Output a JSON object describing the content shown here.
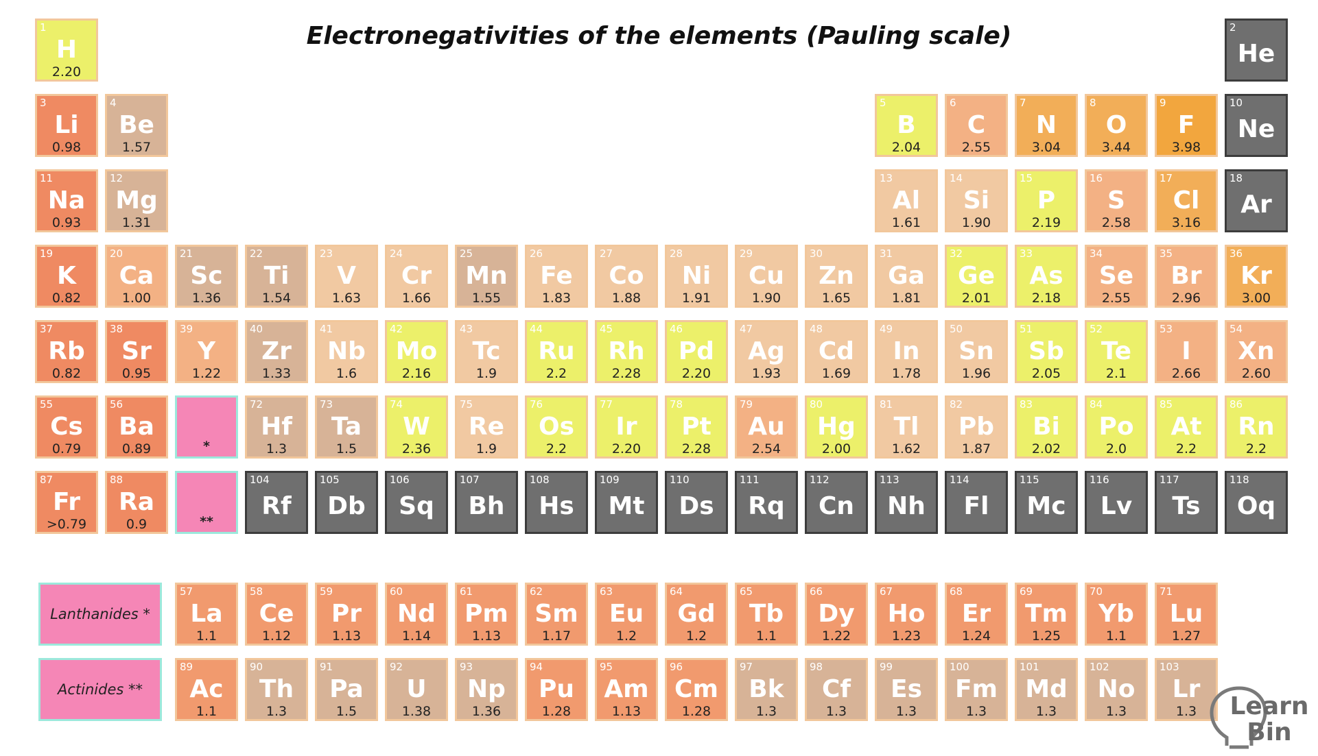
{
  "title": "Electronegativities of the elements (Pauling scale)",
  "colors": {
    "yellow": "#ecf06a",
    "light_tan": "#f1c9a2",
    "tan": "#e6bb95",
    "dark_tan": "#d7b397",
    "light_orange": "#f3b184",
    "orange": "#f19a6e",
    "salmon": "#ef8a62",
    "gold": "#f2ae58",
    "amber": "#f2a63e",
    "gray": "#6f6f6f",
    "pink": "#f586b6",
    "teal_border": "#9ce9dc"
  },
  "elements": [
    {
      "n": "1",
      "sym": "H",
      "en": "2.20",
      "row": 1,
      "col": 1,
      "color": "yellow"
    },
    {
      "n": "2",
      "sym": "He",
      "en": "",
      "row": 1,
      "col": 18,
      "color": "gray"
    },
    {
      "n": "3",
      "sym": "Li",
      "en": "0.98",
      "row": 2,
      "col": 1,
      "color": "salmon"
    },
    {
      "n": "4",
      "sym": "Be",
      "en": "1.57",
      "row": 2,
      "col": 2,
      "color": "dark_tan"
    },
    {
      "n": "5",
      "sym": "B",
      "en": "2.04",
      "row": 2,
      "col": 13,
      "color": "yellow"
    },
    {
      "n": "6",
      "sym": "C",
      "en": "2.55",
      "row": 2,
      "col": 14,
      "color": "light_orange"
    },
    {
      "n": "7",
      "sym": "N",
      "en": "3.04",
      "row": 2,
      "col": 15,
      "color": "gold"
    },
    {
      "n": "8",
      "sym": "O",
      "en": "3.44",
      "row": 2,
      "col": 16,
      "color": "gold"
    },
    {
      "n": "9",
      "sym": "F",
      "en": "3.98",
      "row": 2,
      "col": 17,
      "color": "amber"
    },
    {
      "n": "10",
      "sym": "Ne",
      "en": "",
      "row": 2,
      "col": 18,
      "color": "gray"
    },
    {
      "n": "11",
      "sym": "Na",
      "en": "0.93",
      "row": 3,
      "col": 1,
      "color": "salmon"
    },
    {
      "n": "12",
      "sym": "Mg",
      "en": "1.31",
      "row": 3,
      "col": 2,
      "color": "dark_tan"
    },
    {
      "n": "13",
      "sym": "Al",
      "en": "1.61",
      "row": 3,
      "col": 13,
      "color": "light_tan"
    },
    {
      "n": "14",
      "sym": "Si",
      "en": "1.90",
      "row": 3,
      "col": 14,
      "color": "light_tan"
    },
    {
      "n": "15",
      "sym": "P",
      "en": "2.19",
      "row": 3,
      "col": 15,
      "color": "yellow"
    },
    {
      "n": "16",
      "sym": "S",
      "en": "2.58",
      "row": 3,
      "col": 16,
      "color": "light_orange"
    },
    {
      "n": "17",
      "sym": "Cl",
      "en": "3.16",
      "row": 3,
      "col": 17,
      "color": "gold"
    },
    {
      "n": "18",
      "sym": "Ar",
      "en": "",
      "row": 3,
      "col": 18,
      "color": "gray"
    },
    {
      "n": "19",
      "sym": "K",
      "en": "0.82",
      "row": 4,
      "col": 1,
      "color": "salmon"
    },
    {
      "n": "20",
      "sym": "Ca",
      "en": "1.00",
      "row": 4,
      "col": 2,
      "color": "light_orange"
    },
    {
      "n": "21",
      "sym": "Sc",
      "en": "1.36",
      "row": 4,
      "col": 3,
      "color": "dark_tan"
    },
    {
      "n": "22",
      "sym": "Ti",
      "en": "1.54",
      "row": 4,
      "col": 4,
      "color": "dark_tan"
    },
    {
      "n": "23",
      "sym": "V",
      "en": "1.63",
      "row": 4,
      "col": 5,
      "color": "light_tan"
    },
    {
      "n": "24",
      "sym": "Cr",
      "en": "1.66",
      "row": 4,
      "col": 6,
      "color": "light_tan"
    },
    {
      "n": "25",
      "sym": "Mn",
      "en": "1.55",
      "row": 4,
      "col": 7,
      "color": "dark_tan"
    },
    {
      "n": "26",
      "sym": "Fe",
      "en": "1.83",
      "row": 4,
      "col": 8,
      "color": "light_tan"
    },
    {
      "n": "27",
      "sym": "Co",
      "en": "1.88",
      "row": 4,
      "col": 9,
      "color": "light_tan"
    },
    {
      "n": "28",
      "sym": "Ni",
      "en": "1.91",
      "row": 4,
      "col": 10,
      "color": "light_tan"
    },
    {
      "n": "29",
      "sym": "Cu",
      "en": "1.90",
      "row": 4,
      "col": 11,
      "color": "light_tan"
    },
    {
      "n": "30",
      "sym": "Zn",
      "en": "1.65",
      "row": 4,
      "col": 12,
      "color": "light_tan"
    },
    {
      "n": "31",
      "sym": "Ga",
      "en": "1.81",
      "row": 4,
      "col": 13,
      "color": "light_tan"
    },
    {
      "n": "32",
      "sym": "Ge",
      "en": "2.01",
      "row": 4,
      "col": 14,
      "color": "yellow"
    },
    {
      "n": "33",
      "sym": "As",
      "en": "2.18",
      "row": 4,
      "col": 15,
      "color": "yellow"
    },
    {
      "n": "34",
      "sym": "Se",
      "en": "2.55",
      "row": 4,
      "col": 16,
      "color": "light_orange"
    },
    {
      "n": "35",
      "sym": "Br",
      "en": "2.96",
      "row": 4,
      "col": 17,
      "color": "light_orange"
    },
    {
      "n": "36",
      "sym": "Kr",
      "en": "3.00",
      "row": 4,
      "col": 18,
      "color": "gold"
    },
    {
      "n": "37",
      "sym": "Rb",
      "en": "0.82",
      "row": 5,
      "col": 1,
      "color": "salmon"
    },
    {
      "n": "38",
      "sym": "Sr",
      "en": "0.95",
      "row": 5,
      "col": 2,
      "color": "salmon"
    },
    {
      "n": "39",
      "sym": "Y",
      "en": "1.22",
      "row": 5,
      "col": 3,
      "color": "light_orange"
    },
    {
      "n": "40",
      "sym": "Zr",
      "en": "1.33",
      "row": 5,
      "col": 4,
      "color": "dark_tan"
    },
    {
      "n": "41",
      "sym": "Nb",
      "en": "1.6",
      "row": 5,
      "col": 5,
      "color": "light_tan"
    },
    {
      "n": "42",
      "sym": "Mo",
      "en": "2.16",
      "row": 5,
      "col": 6,
      "color": "yellow"
    },
    {
      "n": "43",
      "sym": "Tc",
      "en": "1.9",
      "row": 5,
      "col": 7,
      "color": "light_tan"
    },
    {
      "n": "44",
      "sym": "Ru",
      "en": "2.2",
      "row": 5,
      "col": 8,
      "color": "yellow"
    },
    {
      "n": "45",
      "sym": "Rh",
      "en": "2.28",
      "row": 5,
      "col": 9,
      "color": "yellow"
    },
    {
      "n": "46",
      "sym": "Pd",
      "en": "2.20",
      "row": 5,
      "col": 10,
      "color": "yellow"
    },
    {
      "n": "47",
      "sym": "Ag",
      "en": "1.93",
      "row": 5,
      "col": 11,
      "color": "light_tan"
    },
    {
      "n": "48",
      "sym": "Cd",
      "en": "1.69",
      "row": 5,
      "col": 12,
      "color": "light_tan"
    },
    {
      "n": "49",
      "sym": "In",
      "en": "1.78",
      "row": 5,
      "col": 13,
      "color": "light_tan"
    },
    {
      "n": "50",
      "sym": "Sn",
      "en": "1.96",
      "row": 5,
      "col": 14,
      "color": "light_tan"
    },
    {
      "n": "51",
      "sym": "Sb",
      "en": "2.05",
      "row": 5,
      "col": 15,
      "color": "yellow"
    },
    {
      "n": "52",
      "sym": "Te",
      "en": "2.1",
      "row": 5,
      "col": 16,
      "color": "yellow"
    },
    {
      "n": "53",
      "sym": "I",
      "en": "2.66",
      "row": 5,
      "col": 17,
      "color": "light_orange"
    },
    {
      "n": "54",
      "sym": "Xn",
      "en": "2.60",
      "row": 5,
      "col": 18,
      "color": "light_orange"
    },
    {
      "n": "55",
      "sym": "Cs",
      "en": "0.79",
      "row": 6,
      "col": 1,
      "color": "salmon"
    },
    {
      "n": "56",
      "sym": "Ba",
      "en": "0.89",
      "row": 6,
      "col": 2,
      "color": "salmon"
    },
    {
      "n": "72",
      "sym": "Hf",
      "en": "1.3",
      "row": 6,
      "col": 4,
      "color": "dark_tan"
    },
    {
      "n": "73",
      "sym": "Ta",
      "en": "1.5",
      "row": 6,
      "col": 5,
      "color": "dark_tan"
    },
    {
      "n": "74",
      "sym": "W",
      "en": "2.36",
      "row": 6,
      "col": 6,
      "color": "yellow"
    },
    {
      "n": "75",
      "sym": "Re",
      "en": "1.9",
      "row": 6,
      "col": 7,
      "color": "light_tan"
    },
    {
      "n": "76",
      "sym": "Os",
      "en": "2.2",
      "row": 6,
      "col": 8,
      "color": "yellow"
    },
    {
      "n": "77",
      "sym": "Ir",
      "en": "2.20",
      "row": 6,
      "col": 9,
      "color": "yellow"
    },
    {
      "n": "78",
      "sym": "Pt",
      "en": "2.28",
      "row": 6,
      "col": 10,
      "color": "yellow"
    },
    {
      "n": "79",
      "sym": "Au",
      "en": "2.54",
      "row": 6,
      "col": 11,
      "color": "light_orange"
    },
    {
      "n": "80",
      "sym": "Hg",
      "en": "2.00",
      "row": 6,
      "col": 12,
      "color": "yellow"
    },
    {
      "n": "81",
      "sym": "Tl",
      "en": "1.62",
      "row": 6,
      "col": 13,
      "color": "light_tan"
    },
    {
      "n": "82",
      "sym": "Pb",
      "en": "1.87",
      "row": 6,
      "col": 14,
      "color": "light_tan"
    },
    {
      "n": "83",
      "sym": "Bi",
      "en": "2.02",
      "row": 6,
      "col": 15,
      "color": "yellow"
    },
    {
      "n": "84",
      "sym": "Po",
      "en": "2.0",
      "row": 6,
      "col": 16,
      "color": "yellow"
    },
    {
      "n": "85",
      "sym": "At",
      "en": "2.2",
      "row": 6,
      "col": 17,
      "color": "yellow"
    },
    {
      "n": "86",
      "sym": "Rn",
      "en": "2.2",
      "row": 6,
      "col": 18,
      "color": "yellow"
    },
    {
      "n": "87",
      "sym": "Fr",
      "en": ">0.79",
      "row": 7,
      "col": 1,
      "color": "salmon"
    },
    {
      "n": "88",
      "sym": "Ra",
      "en": "0.9",
      "row": 7,
      "col": 2,
      "color": "salmon"
    },
    {
      "n": "104",
      "sym": "Rf",
      "en": "",
      "row": 7,
      "col": 4,
      "color": "gray"
    },
    {
      "n": "105",
      "sym": "Db",
      "en": "",
      "row": 7,
      "col": 5,
      "color": "gray"
    },
    {
      "n": "106",
      "sym": "Sq",
      "en": "",
      "row": 7,
      "col": 6,
      "color": "gray"
    },
    {
      "n": "107",
      "sym": "Bh",
      "en": "",
      "row": 7,
      "col": 7,
      "color": "gray"
    },
    {
      "n": "108",
      "sym": "Hs",
      "en": "",
      "row": 7,
      "col": 8,
      "color": "gray"
    },
    {
      "n": "109",
      "sym": "Mt",
      "en": "",
      "row": 7,
      "col": 9,
      "color": "gray"
    },
    {
      "n": "110",
      "sym": "Ds",
      "en": "",
      "row": 7,
      "col": 10,
      "color": "gray"
    },
    {
      "n": "111",
      "sym": "Rq",
      "en": "",
      "row": 7,
      "col": 11,
      "color": "gray"
    },
    {
      "n": "112",
      "sym": "Cn",
      "en": "",
      "row": 7,
      "col": 12,
      "color": "gray"
    },
    {
      "n": "113",
      "sym": "Nh",
      "en": "",
      "row": 7,
      "col": 13,
      "color": "gray"
    },
    {
      "n": "114",
      "sym": "Fl",
      "en": "",
      "row": 7,
      "col": 14,
      "color": "gray"
    },
    {
      "n": "115",
      "sym": "Mc",
      "en": "",
      "row": 7,
      "col": 15,
      "color": "gray"
    },
    {
      "n": "116",
      "sym": "Lv",
      "en": "",
      "row": 7,
      "col": 16,
      "color": "gray"
    },
    {
      "n": "117",
      "sym": "Ts",
      "en": "",
      "row": 7,
      "col": 17,
      "color": "gray"
    },
    {
      "n": "118",
      "sym": "Oq",
      "en": "",
      "row": 7,
      "col": 18,
      "color": "gray"
    },
    {
      "n": "57",
      "sym": "La",
      "en": "1.1",
      "row": 9,
      "col": 3,
      "color": "orange"
    },
    {
      "n": "58",
      "sym": "Ce",
      "en": "1.12",
      "row": 9,
      "col": 4,
      "color": "orange"
    },
    {
      "n": "59",
      "sym": "Pr",
      "en": "1.13",
      "row": 9,
      "col": 5,
      "color": "orange"
    },
    {
      "n": "60",
      "sym": "Nd",
      "en": "1.14",
      "row": 9,
      "col": 6,
      "color": "orange"
    },
    {
      "n": "61",
      "sym": "Pm",
      "en": "1.13",
      "row": 9,
      "col": 7,
      "color": "orange"
    },
    {
      "n": "62",
      "sym": "Sm",
      "en": "1.17",
      "row": 9,
      "col": 8,
      "color": "orange"
    },
    {
      "n": "63",
      "sym": "Eu",
      "en": "1.2",
      "row": 9,
      "col": 9,
      "color": "orange"
    },
    {
      "n": "64",
      "sym": "Gd",
      "en": "1.2",
      "row": 9,
      "col": 10,
      "color": "orange"
    },
    {
      "n": "65",
      "sym": "Tb",
      "en": "1.1",
      "row": 9,
      "col": 11,
      "color": "orange"
    },
    {
      "n": "66",
      "sym": "Dy",
      "en": "1.22",
      "row": 9,
      "col": 12,
      "color": "orange"
    },
    {
      "n": "67",
      "sym": "Ho",
      "en": "1.23",
      "row": 9,
      "col": 13,
      "color": "orange"
    },
    {
      "n": "68",
      "sym": "Er",
      "en": "1.24",
      "row": 9,
      "col": 14,
      "color": "orange"
    },
    {
      "n": "69",
      "sym": "Tm",
      "en": "1.25",
      "row": 9,
      "col": 15,
      "color": "orange"
    },
    {
      "n": "70",
      "sym": "Yb",
      "en": "1.1",
      "row": 9,
      "col": 16,
      "color": "orange"
    },
    {
      "n": "71",
      "sym": "Lu",
      "en": "1.27",
      "row": 9,
      "col": 17,
      "color": "orange"
    },
    {
      "n": "89",
      "sym": "Ac",
      "en": "1.1",
      "row": 10,
      "col": 3,
      "color": "orange"
    },
    {
      "n": "90",
      "sym": "Th",
      "en": "1.3",
      "row": 10,
      "col": 4,
      "color": "dark_tan"
    },
    {
      "n": "91",
      "sym": "Pa",
      "en": "1.5",
      "row": 10,
      "col": 5,
      "color": "dark_tan"
    },
    {
      "n": "92",
      "sym": "U",
      "en": "1.38",
      "row": 10,
      "col": 6,
      "color": "dark_tan"
    },
    {
      "n": "93",
      "sym": "Np",
      "en": "1.36",
      "row": 10,
      "col": 7,
      "color": "dark_tan"
    },
    {
      "n": "94",
      "sym": "Pu",
      "en": "1.28",
      "row": 10,
      "col": 8,
      "color": "orange"
    },
    {
      "n": "95",
      "sym": "Am",
      "en": "1.13",
      "row": 10,
      "col": 9,
      "color": "orange"
    },
    {
      "n": "96",
      "sym": "Cm",
      "en": "1.28",
      "row": 10,
      "col": 10,
      "color": "orange"
    },
    {
      "n": "97",
      "sym": "Bk",
      "en": "1.3",
      "row": 10,
      "col": 11,
      "color": "dark_tan"
    },
    {
      "n": "98",
      "sym": "Cf",
      "en": "1.3",
      "row": 10,
      "col": 12,
      "color": "dark_tan"
    },
    {
      "n": "99",
      "sym": "Es",
      "en": "1.3",
      "row": 10,
      "col": 13,
      "color": "dark_tan"
    },
    {
      "n": "100",
      "sym": "Fm",
      "en": "1.3",
      "row": 10,
      "col": 14,
      "color": "dark_tan"
    },
    {
      "n": "101",
      "sym": "Md",
      "en": "1.3",
      "row": 10,
      "col": 15,
      "color": "dark_tan"
    },
    {
      "n": "102",
      "sym": "No",
      "en": "1.3",
      "row": 10,
      "col": 16,
      "color": "dark_tan"
    },
    {
      "n": "103",
      "sym": "Lr",
      "en": "1.3",
      "row": 10,
      "col": 17,
      "color": "dark_tan"
    }
  ],
  "placeholders": [
    {
      "mark": "*",
      "row": 6,
      "col": 3
    },
    {
      "mark": "**",
      "row": 7,
      "col": 3
    }
  ],
  "series_labels": {
    "lanthanides": "Lanthanides *",
    "actinides": "Actinides **"
  },
  "logo": {
    "line1": "Learn",
    "line2": "Bin"
  }
}
